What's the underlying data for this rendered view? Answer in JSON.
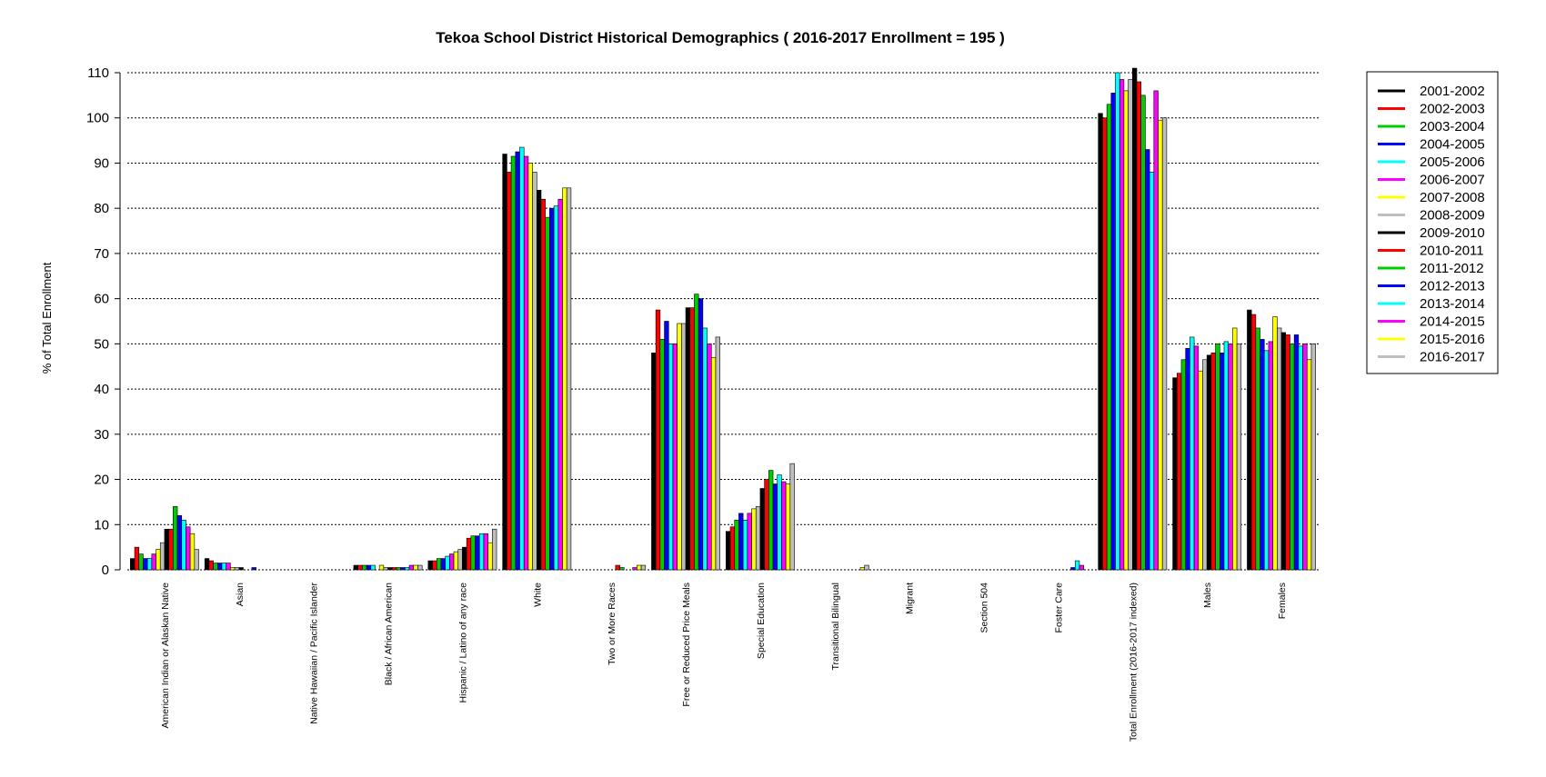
{
  "chart_data": {
    "type": "bar",
    "title": "Tekoa School District Historical Demographics  ( 2016-2017 Enrollment =  195 )",
    "xlabel": "",
    "ylabel": "% of Total Enrollment",
    "ylim": [
      0,
      110
    ],
    "yticks": [
      0,
      10,
      20,
      30,
      40,
      50,
      60,
      70,
      80,
      90,
      100,
      110
    ],
    "grid": "horizontal dotted",
    "legend_position": "top-right",
    "categories": [
      "American Indian or Alaskan Native",
      "Asian",
      "Native Hawaiian / Pacific Islander",
      "Black / African American",
      "Hispanic / Latino of any race",
      "White",
      "Two or More Races",
      "Free or Reduced Price Meals",
      "Special Education",
      "Transitional Bilingual",
      "Migrant",
      "Section 504",
      "Foster Care",
      "Total Enrollment (2016-2017 indexed)",
      "Males",
      "Females"
    ],
    "series": [
      {
        "name": "2001-2002",
        "color": "#000000",
        "values": [
          2.5,
          2.5,
          0,
          1.0,
          2.0,
          92.0,
          0,
          48.0,
          8.5,
          0,
          0,
          0,
          0,
          101.0,
          42.5,
          57.5
        ]
      },
      {
        "name": "2002-2003",
        "color": "#ff0000",
        "values": [
          5.0,
          2.0,
          0,
          1.0,
          2.0,
          88.0,
          0,
          57.5,
          9.5,
          0,
          0,
          0,
          0,
          100.0,
          43.5,
          56.5
        ]
      },
      {
        "name": "2003-2004",
        "color": "#00cc00",
        "values": [
          3.5,
          1.5,
          0,
          1.0,
          2.5,
          91.5,
          0,
          51.0,
          11.0,
          0,
          0,
          0,
          0,
          103.0,
          46.5,
          53.5
        ]
      },
      {
        "name": "2004-2005",
        "color": "#0000ff",
        "values": [
          2.5,
          1.5,
          0,
          1.0,
          2.5,
          92.5,
          0,
          55.0,
          12.5,
          0,
          0,
          0,
          0,
          105.5,
          49.0,
          51.0
        ]
      },
      {
        "name": "2005-2006",
        "color": "#00ffff",
        "values": [
          2.5,
          1.5,
          0,
          1.0,
          3.0,
          93.5,
          0,
          50.0,
          11.0,
          0,
          0,
          0,
          0,
          110.0,
          51.5,
          48.5
        ]
      },
      {
        "name": "2006-2007",
        "color": "#ff00ff",
        "values": [
          3.5,
          1.5,
          0,
          0,
          3.5,
          91.5,
          0,
          50.0,
          12.5,
          0,
          0,
          0,
          0,
          108.5,
          49.5,
          50.5
        ]
      },
      {
        "name": "2007-2008",
        "color": "#ffff00",
        "values": [
          4.5,
          0.5,
          0,
          1.0,
          4.0,
          90.0,
          0,
          54.5,
          13.5,
          0,
          0,
          0,
          0,
          106.0,
          44.0,
          56.0
        ]
      },
      {
        "name": "2008-2009",
        "color": "#bebebe",
        "values": [
          6.0,
          0.5,
          0,
          0.5,
          4.5,
          88.0,
          0,
          54.5,
          14.0,
          0,
          0,
          0,
          0,
          108.5,
          46.5,
          53.5
        ]
      },
      {
        "name": "2009-2010",
        "color": "#000000",
        "values": [
          9.0,
          0.5,
          0,
          0.5,
          5.0,
          84.0,
          0,
          58.0,
          18.0,
          0,
          0,
          0,
          0,
          111.0,
          47.5,
          52.5
        ]
      },
      {
        "name": "2010-2011",
        "color": "#ff0000",
        "values": [
          9.0,
          0,
          0,
          0.5,
          7.0,
          82.0,
          1.0,
          58.0,
          20.0,
          0,
          0,
          0,
          0,
          108.0,
          48.0,
          52.0
        ]
      },
      {
        "name": "2011-2012",
        "color": "#00cc00",
        "values": [
          14.0,
          0,
          0,
          0.5,
          7.5,
          78.0,
          0.5,
          61.0,
          22.0,
          0,
          0,
          0,
          0,
          105.0,
          50.0,
          50.0
        ]
      },
      {
        "name": "2012-2013",
        "color": "#0000ff",
        "values": [
          12.0,
          0.5,
          0,
          0.5,
          7.5,
          80.0,
          0,
          60.0,
          19.0,
          0,
          0,
          0,
          0.5,
          93.0,
          48.0,
          52.0
        ]
      },
      {
        "name": "2013-2014",
        "color": "#00ffff",
        "values": [
          11.0,
          0,
          0,
          0.5,
          8.0,
          80.5,
          0,
          53.5,
          21.0,
          0,
          0,
          0,
          2.0,
          88.0,
          50.5,
          49.5
        ]
      },
      {
        "name": "2014-2015",
        "color": "#ff00ff",
        "values": [
          9.5,
          0,
          0,
          1.0,
          8.0,
          82.0,
          0.5,
          50.0,
          19.5,
          0,
          0,
          0,
          1.0,
          106.0,
          50.0,
          50.0
        ]
      },
      {
        "name": "2015-2016",
        "color": "#ffff00",
        "values": [
          8.0,
          0,
          0,
          1.0,
          6.0,
          84.5,
          1.0,
          47.0,
          19.0,
          0.5,
          0,
          0,
          0,
          99.5,
          53.5,
          46.5
        ]
      },
      {
        "name": "2016-2017",
        "color": "#bebebe",
        "values": [
          4.5,
          0,
          0,
          1.0,
          9.0,
          84.5,
          1.0,
          51.5,
          23.5,
          1.0,
          0,
          0,
          0,
          100.0,
          50.0,
          50.0
        ]
      }
    ]
  }
}
